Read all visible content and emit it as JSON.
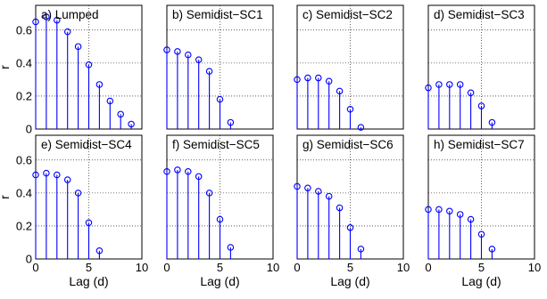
{
  "figure": {
    "xlabel": "Lag (d)",
    "ylabel": "r",
    "series_color": "#0000ff"
  },
  "chart_data": [
    {
      "type": "stem",
      "title": "a) Lumped",
      "xlim": [
        0,
        10
      ],
      "ylim": [
        0,
        0.75
      ],
      "xticks": [
        "0",
        "5",
        "10"
      ],
      "yticks": [
        "0",
        "0.2",
        "0.4",
        "0.6"
      ],
      "grid": true,
      "x": [
        0,
        1,
        2,
        3,
        4,
        5,
        6,
        7,
        8,
        9
      ],
      "y": [
        0.65,
        0.68,
        0.66,
        0.59,
        0.5,
        0.39,
        0.27,
        0.17,
        0.09,
        0.03
      ]
    },
    {
      "type": "stem",
      "title": "b) Semidist−SC1",
      "xlim": [
        0,
        10
      ],
      "ylim": [
        0,
        0.75
      ],
      "xticks": [
        "0",
        "5",
        "10"
      ],
      "yticks": [
        "0",
        "0.2",
        "0.4",
        "0.6"
      ],
      "grid": true,
      "x": [
        0,
        1,
        2,
        3,
        4,
        5,
        6
      ],
      "y": [
        0.48,
        0.47,
        0.45,
        0.42,
        0.35,
        0.18,
        0.04
      ]
    },
    {
      "type": "stem",
      "title": "c) Semidist−SC2",
      "xlim": [
        0,
        10
      ],
      "ylim": [
        0,
        0.75
      ],
      "xticks": [
        "0",
        "5",
        "10"
      ],
      "yticks": [
        "0",
        "0.2",
        "0.4",
        "0.6"
      ],
      "grid": true,
      "x": [
        0,
        1,
        2,
        3,
        4,
        5,
        6
      ],
      "y": [
        0.3,
        0.31,
        0.31,
        0.29,
        0.23,
        0.12,
        0.01
      ]
    },
    {
      "type": "stem",
      "title": "d) Semidist−SC3",
      "xlim": [
        0,
        10
      ],
      "ylim": [
        0,
        0.75
      ],
      "xticks": [
        "0",
        "5",
        "10"
      ],
      "yticks": [
        "0",
        "0.2",
        "0.4",
        "0.6"
      ],
      "grid": true,
      "x": [
        0,
        1,
        2,
        3,
        4,
        5,
        6
      ],
      "y": [
        0.25,
        0.27,
        0.27,
        0.27,
        0.22,
        0.14,
        0.04
      ]
    },
    {
      "type": "stem",
      "title": "e) Semidist−SC4",
      "xlim": [
        0,
        10
      ],
      "ylim": [
        0,
        0.75
      ],
      "xticks": [
        "0",
        "5",
        "10"
      ],
      "yticks": [
        "0",
        "0.2",
        "0.4",
        "0.6"
      ],
      "grid": true,
      "x": [
        0,
        1,
        2,
        3,
        4,
        5,
        6
      ],
      "y": [
        0.51,
        0.52,
        0.51,
        0.48,
        0.4,
        0.22,
        0.05
      ]
    },
    {
      "type": "stem",
      "title": "f) Semidist−SC5",
      "xlim": [
        0,
        10
      ],
      "ylim": [
        0,
        0.75
      ],
      "xticks": [
        "0",
        "5",
        "10"
      ],
      "yticks": [
        "0",
        "0.2",
        "0.4",
        "0.6"
      ],
      "grid": true,
      "x": [
        0,
        1,
        2,
        3,
        4,
        5,
        6
      ],
      "y": [
        0.53,
        0.54,
        0.53,
        0.5,
        0.4,
        0.24,
        0.07
      ]
    },
    {
      "type": "stem",
      "title": "g) Semidist−SC6",
      "xlim": [
        0,
        10
      ],
      "ylim": [
        0,
        0.75
      ],
      "xticks": [
        "0",
        "5",
        "10"
      ],
      "yticks": [
        "0",
        "0.2",
        "0.4",
        "0.6"
      ],
      "grid": true,
      "x": [
        0,
        1,
        2,
        3,
        4,
        5,
        6
      ],
      "y": [
        0.44,
        0.43,
        0.41,
        0.38,
        0.31,
        0.19,
        0.06
      ]
    },
    {
      "type": "stem",
      "title": "h) Semidist−SC7",
      "xlim": [
        0,
        10
      ],
      "ylim": [
        0,
        0.75
      ],
      "xticks": [
        "0",
        "5",
        "10"
      ],
      "yticks": [
        "0",
        "0.2",
        "0.4",
        "0.6"
      ],
      "grid": true,
      "x": [
        0,
        1,
        2,
        3,
        4,
        5,
        6
      ],
      "y": [
        0.3,
        0.3,
        0.29,
        0.27,
        0.24,
        0.15,
        0.06
      ]
    }
  ]
}
